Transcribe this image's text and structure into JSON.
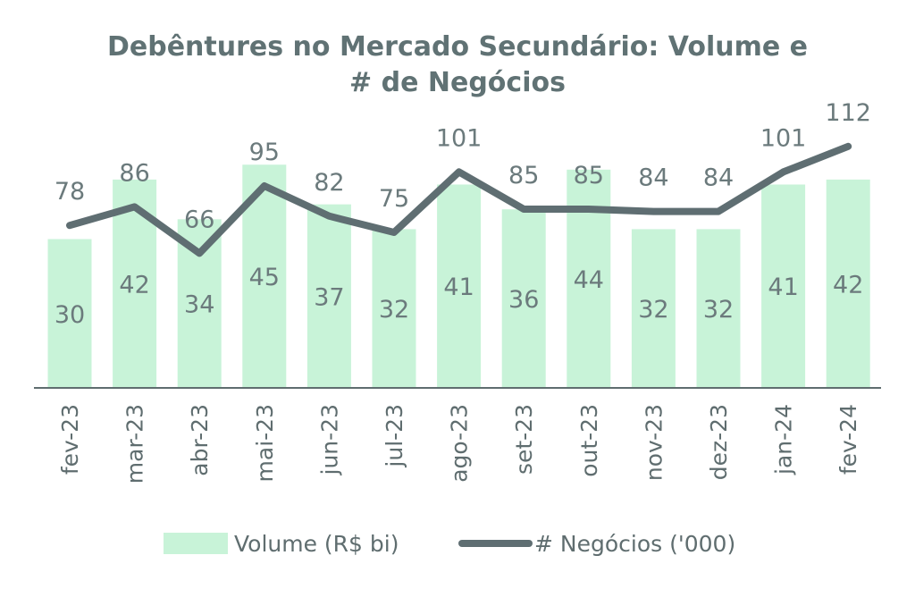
{
  "chart_data": {
    "type": "bar+line",
    "title_lines": [
      "Debêntures no Mercado Secundário: Volume e",
      "# de Negócios"
    ],
    "categories": [
      "fev-23",
      "mar-23",
      "abr-23",
      "mai-23",
      "jun-23",
      "jul-23",
      "ago-23",
      "set-23",
      "out-23",
      "nov-23",
      "dez-23",
      "jan-24",
      "fev-24"
    ],
    "series": [
      {
        "name": "Volume (R$ bi)",
        "type": "bar",
        "color": "#c8f3d8",
        "values": [
          30,
          42,
          34,
          45,
          37,
          32,
          41,
          36,
          44,
          32,
          32,
          41,
          42
        ]
      },
      {
        "name": "# Negócios ('000)",
        "type": "line",
        "color": "#5f6e72",
        "values": [
          78,
          86,
          66,
          95,
          82,
          75,
          101,
          85,
          85,
          84,
          84,
          101,
          112
        ]
      }
    ],
    "legend_position": "bottom",
    "grid": false
  }
}
